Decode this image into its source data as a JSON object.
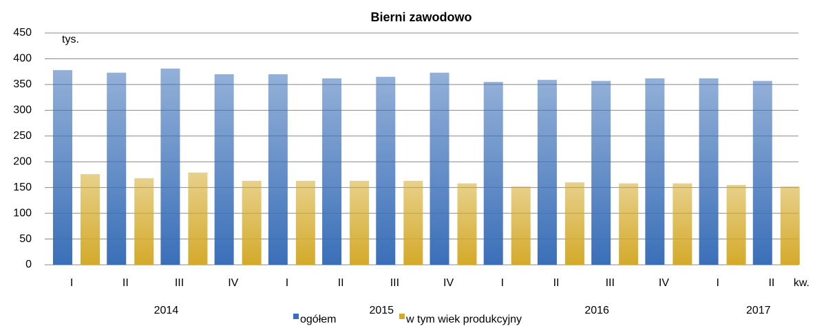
{
  "chart_data": {
    "type": "bar",
    "title": "Bierni zawodowo",
    "y_unit": "tys.",
    "x_unit": "kw.",
    "groups": [
      {
        "name": "2014",
        "categories": [
          "I",
          "II",
          "III",
          "IV"
        ]
      },
      {
        "name": "2015",
        "categories": [
          "I",
          "II",
          "III",
          "IV"
        ]
      },
      {
        "name": "2016",
        "categories": [
          "I",
          "II",
          "III",
          "IV"
        ]
      },
      {
        "name": "2017",
        "categories": [
          "I",
          "II"
        ]
      }
    ],
    "series": [
      {
        "name": "ogółem",
        "color": "#3a6fb8",
        "values": [
          378,
          373,
          381,
          370,
          370,
          362,
          365,
          373,
          355,
          359,
          357,
          362,
          362,
          357
        ]
      },
      {
        "name": "w tym wiek produkcyjny",
        "color": "#d4aa2a",
        "values": [
          176,
          168,
          179,
          163,
          163,
          163,
          163,
          158,
          152,
          160,
          158,
          158,
          155,
          152
        ]
      }
    ],
    "ylim": [
      0,
      450
    ],
    "yticks": [
      0,
      50,
      100,
      150,
      200,
      250,
      300,
      350,
      400,
      450
    ],
    "grid": true
  }
}
